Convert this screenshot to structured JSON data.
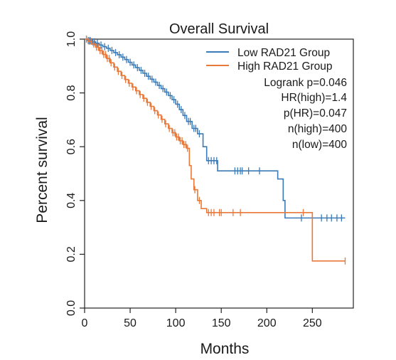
{
  "chart_data": {
    "type": "line",
    "subtype": "kaplan-meier",
    "title": "Overall Survival",
    "xlabel": "Months",
    "ylabel": "Percent survival",
    "xlim": [
      0,
      295
    ],
    "ylim": [
      0,
      1.0
    ],
    "x_ticks": [
      0,
      50,
      100,
      150,
      200,
      250
    ],
    "y_ticks": [
      0.0,
      0.2,
      0.4,
      0.6,
      0.8,
      1.0
    ],
    "y_tick_labels": [
      "0.0",
      "0.2",
      "0.4",
      "0.6",
      "0.8",
      "1.0"
    ],
    "grid": false,
    "legend_position": "top-right",
    "series": [
      {
        "name": "Low RAD21 Group",
        "color": "#3a7bb8",
        "steps": [
          [
            0,
            1.0
          ],
          [
            3,
            0.995
          ],
          [
            8,
            0.99
          ],
          [
            12,
            0.985
          ],
          [
            16,
            0.978
          ],
          [
            20,
            0.972
          ],
          [
            24,
            0.966
          ],
          [
            28,
            0.958
          ],
          [
            32,
            0.95
          ],
          [
            36,
            0.942
          ],
          [
            40,
            0.933
          ],
          [
            44,
            0.924
          ],
          [
            48,
            0.914
          ],
          [
            52,
            0.904
          ],
          [
            56,
            0.894
          ],
          [
            60,
            0.884
          ],
          [
            64,
            0.873
          ],
          [
            68,
            0.862
          ],
          [
            72,
            0.851
          ],
          [
            76,
            0.84
          ],
          [
            80,
            0.828
          ],
          [
            84,
            0.816
          ],
          [
            88,
            0.803
          ],
          [
            92,
            0.79
          ],
          [
            96,
            0.775
          ],
          [
            100,
            0.758
          ],
          [
            104,
            0.738
          ],
          [
            108,
            0.716
          ],
          [
            112,
            0.694
          ],
          [
            118,
            0.668
          ],
          [
            124,
            0.648
          ],
          [
            130,
            0.6
          ],
          [
            134,
            0.548
          ],
          [
            146,
            0.51
          ],
          [
            212,
            0.48
          ],
          [
            218,
            0.4
          ],
          [
            220,
            0.335
          ],
          [
            286,
            0.335
          ]
        ],
        "censor_x": [
          2,
          4,
          6,
          9,
          11,
          14,
          18,
          22,
          26,
          30,
          34,
          38,
          42,
          46,
          50,
          54,
          58,
          62,
          66,
          70,
          74,
          78,
          82,
          86,
          90,
          94,
          98,
          102,
          106,
          110,
          114,
          116,
          120,
          122,
          126,
          136,
          139,
          142,
          145,
          165,
          168,
          171,
          173,
          180,
          192,
          238,
          260,
          266,
          271,
          277,
          282
        ]
      },
      {
        "name": "High RAD21 Group",
        "color": "#e8793a",
        "steps": [
          [
            0,
            1.0
          ],
          [
            4,
            0.992
          ],
          [
            8,
            0.982
          ],
          [
            12,
            0.97
          ],
          [
            16,
            0.957
          ],
          [
            20,
            0.943
          ],
          [
            24,
            0.928
          ],
          [
            28,
            0.912
          ],
          [
            32,
            0.896
          ],
          [
            36,
            0.88
          ],
          [
            40,
            0.865
          ],
          [
            44,
            0.85
          ],
          [
            48,
            0.836
          ],
          [
            52,
            0.822
          ],
          [
            56,
            0.808
          ],
          [
            60,
            0.794
          ],
          [
            64,
            0.78
          ],
          [
            68,
            0.765
          ],
          [
            72,
            0.75
          ],
          [
            76,
            0.734
          ],
          [
            80,
            0.718
          ],
          [
            84,
            0.702
          ],
          [
            88,
            0.685
          ],
          [
            92,
            0.668
          ],
          [
            96,
            0.652
          ],
          [
            100,
            0.636
          ],
          [
            104,
            0.622
          ],
          [
            108,
            0.608
          ],
          [
            112,
            0.594
          ],
          [
            115,
            0.53
          ],
          [
            117,
            0.48
          ],
          [
            120,
            0.44
          ],
          [
            124,
            0.4
          ],
          [
            128,
            0.37
          ],
          [
            134,
            0.355
          ],
          [
            248,
            0.355
          ],
          [
            250,
            0.175
          ],
          [
            286,
            0.175
          ]
        ],
        "censor_x": [
          2,
          5,
          7,
          10,
          13,
          15,
          17,
          19,
          21,
          23,
          25,
          27,
          29,
          33,
          37,
          41,
          45,
          49,
          53,
          57,
          61,
          65,
          69,
          73,
          77,
          81,
          85,
          89,
          93,
          97,
          99,
          101,
          103,
          105,
          107,
          109,
          111,
          113,
          121,
          126,
          136,
          139,
          142,
          148,
          150,
          163,
          171,
          240,
          286
        ]
      }
    ],
    "annotations": [
      "Logrank p=0.046",
      "HR(high)=1.4",
      "p(HR)=0.047",
      "n(high)=400",
      "n(low)=400"
    ]
  }
}
